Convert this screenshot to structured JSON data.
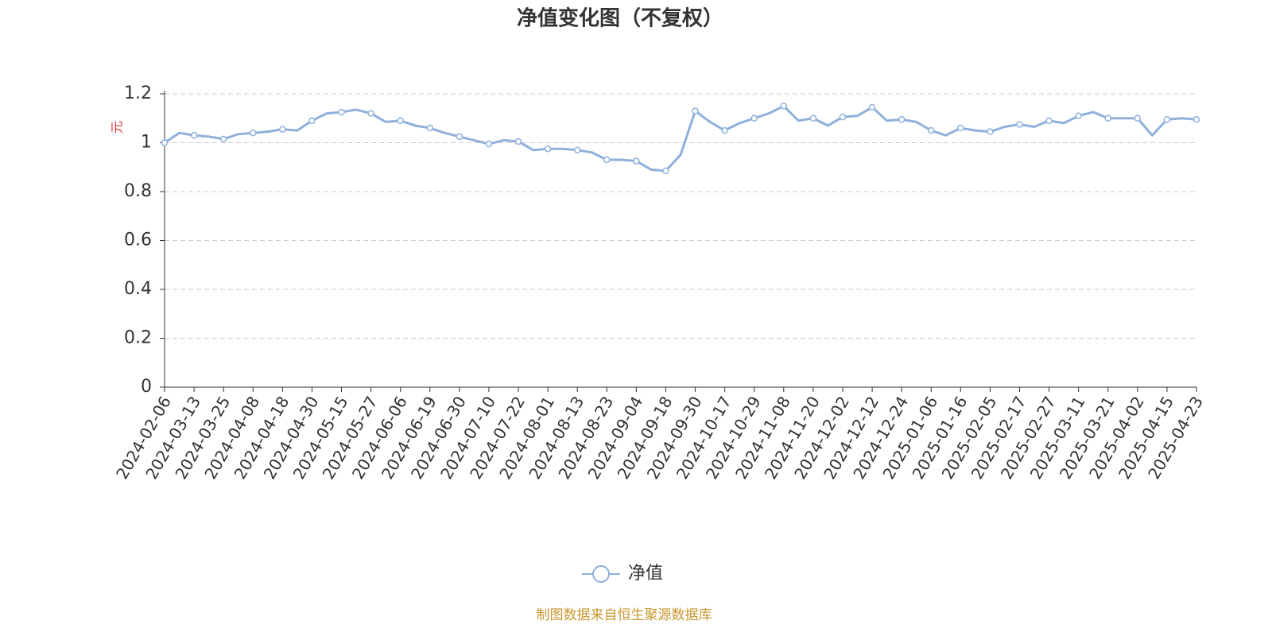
{
  "chart_data": {
    "type": "line",
    "title": "净值变化图（不复权）",
    "y_label": "元",
    "source": "制图数据来自恒生聚源数据库",
    "categories": [
      "2024-02-06",
      null,
      "2024-03-13",
      null,
      "2024-03-25",
      null,
      "2024-04-08",
      null,
      "2024-04-18",
      null,
      "2024-04-30",
      null,
      "2024-05-15",
      null,
      "2024-05-27",
      null,
      "2024-06-06",
      null,
      "2024-06-19",
      null,
      "2024-06-30",
      null,
      "2024-07-10",
      null,
      "2024-07-22",
      null,
      "2024-08-01",
      null,
      "2024-08-13",
      null,
      "2024-08-23",
      null,
      "2024-09-04",
      null,
      "2024-09-18",
      null,
      "2024-09-30",
      null,
      "2024-10-17",
      null,
      "2024-10-29",
      null,
      "2024-11-08",
      null,
      "2024-11-20",
      null,
      "2024-12-02",
      null,
      "2024-12-12",
      null,
      "2024-12-24",
      null,
      "2025-01-06",
      null,
      "2025-01-16",
      null,
      "2025-02-05",
      null,
      "2025-02-17",
      null,
      "2025-02-27",
      null,
      "2025-03-11",
      null,
      "2025-03-21",
      null,
      "2025-04-02",
      null,
      "2025-04-15",
      null,
      "2025-04-23"
    ],
    "series": [
      {
        "name": "净值",
        "color": "#8fb0dc",
        "values": [
          1.0,
          1.04,
          1.03,
          1.025,
          1.015,
          1.035,
          1.04,
          1.045,
          1.055,
          1.05,
          1.09,
          1.12,
          1.125,
          1.135,
          1.12,
          1.085,
          1.09,
          1.07,
          1.06,
          1.04,
          1.025,
          1.01,
          0.995,
          1.01,
          1.005,
          0.97,
          0.975,
          0.975,
          0.97,
          0.96,
          0.93,
          0.93,
          0.925,
          0.89,
          0.885,
          0.95,
          1.13,
          1.085,
          1.05,
          1.08,
          1.1,
          1.12,
          1.15,
          1.09,
          1.1,
          1.07,
          1.105,
          1.11,
          1.145,
          1.09,
          1.095,
          1.085,
          1.05,
          1.03,
          1.06,
          1.05,
          1.045,
          1.065,
          1.075,
          1.065,
          1.09,
          1.08,
          1.11,
          1.125,
          1.1,
          1.1,
          1.1,
          1.03,
          1.095,
          1.1,
          1.095
        ]
      }
    ],
    "ylim": [
      0,
      1.2
    ],
    "yticks": [
      0,
      0.2,
      0.4,
      0.6,
      0.8,
      1,
      1.2
    ],
    "grid": true
  }
}
